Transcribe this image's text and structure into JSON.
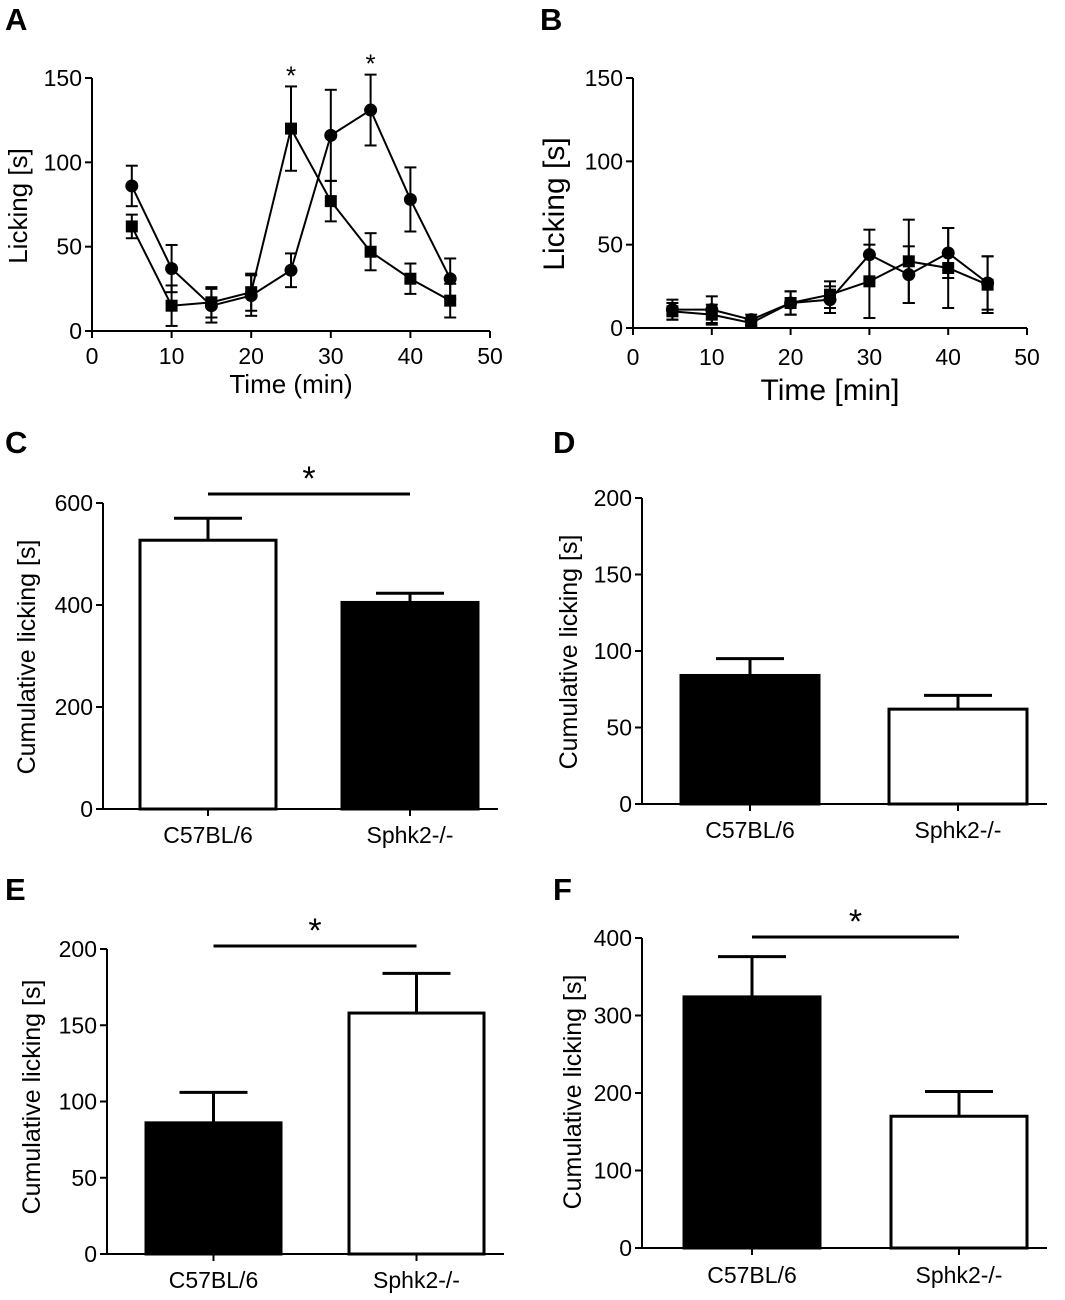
{
  "chart_data": [
    {
      "panel": "A",
      "type": "line",
      "xlabel": "Time (min)",
      "ylabel": "Licking [s]",
      "xlim": [
        0,
        50
      ],
      "ylim": [
        0,
        150
      ],
      "xticks": [
        "0",
        "10",
        "20",
        "30",
        "40",
        "50"
      ],
      "yticks": [
        "0",
        "50",
        "100",
        "150"
      ],
      "series": [
        {
          "name": "circles",
          "marker": "circle",
          "x": [
            5,
            10,
            15,
            20,
            25,
            30,
            35,
            40,
            45
          ],
          "values": [
            86,
            37,
            15,
            21,
            36,
            116,
            131,
            78,
            31
          ],
          "errors": [
            12,
            14,
            10,
            12,
            10,
            27,
            21,
            19,
            12
          ]
        },
        {
          "name": "squares",
          "marker": "square",
          "x": [
            5,
            10,
            15,
            20,
            25,
            30,
            35,
            40,
            45
          ],
          "values": [
            62,
            15,
            17,
            23,
            120,
            77,
            47,
            31,
            18
          ],
          "errors": [
            7,
            12,
            9,
            11,
            25,
            12,
            11,
            9,
            10
          ]
        }
      ],
      "annotations": [
        {
          "x": 25,
          "text": "*"
        },
        {
          "x": 35,
          "text": "*"
        }
      ]
    },
    {
      "panel": "B",
      "type": "line",
      "xlabel": "Time [min]",
      "ylabel": "Licking [s]",
      "xlim": [
        0,
        50
      ],
      "ylim": [
        0,
        150
      ],
      "xticks": [
        "0",
        "10",
        "20",
        "30",
        "40",
        "50"
      ],
      "yticks": [
        "0",
        "50",
        "100",
        "150"
      ],
      "series": [
        {
          "name": "circles",
          "marker": "circle",
          "x": [
            5,
            10,
            15,
            20,
            25,
            30,
            35,
            40,
            45
          ],
          "values": [
            11,
            11,
            5,
            15,
            17,
            44,
            32,
            45,
            27
          ],
          "errors": [
            6,
            8,
            3,
            7,
            8,
            15,
            17,
            15,
            16
          ]
        },
        {
          "name": "squares",
          "marker": "square",
          "x": [
            5,
            10,
            15,
            20,
            25,
            30,
            35,
            40,
            45
          ],
          "values": [
            10,
            8,
            3,
            15,
            20,
            28,
            40,
            36,
            26
          ],
          "errors": [
            5,
            6,
            2,
            7,
            8,
            22,
            25,
            24,
            17
          ]
        }
      ]
    },
    {
      "panel": "C",
      "type": "bar",
      "ylabel": "Cumulative licking [s]",
      "categories": [
        "C57BL/6",
        "Sphk2-/-"
      ],
      "values": [
        527,
        405
      ],
      "errors": [
        43,
        18
      ],
      "fills": [
        "#ffffff",
        "#000000"
      ],
      "ylim": [
        0,
        600
      ],
      "yticks": [
        "0",
        "200",
        "400",
        "600"
      ],
      "significance": "*"
    },
    {
      "panel": "D",
      "type": "bar",
      "ylabel": "Cumulative licking [s]",
      "categories": [
        "C57BL/6",
        "Sphk2-/-"
      ],
      "values": [
        84,
        62
      ],
      "errors": [
        11,
        9
      ],
      "fills": [
        "#000000",
        "#ffffff"
      ],
      "ylim": [
        0,
        200
      ],
      "yticks": [
        "0",
        "50",
        "100",
        "150",
        "200"
      ]
    },
    {
      "panel": "E",
      "type": "bar",
      "ylabel": "Cumulative licking [s]",
      "categories": [
        "C57BL/6",
        "Sphk2-/-"
      ],
      "values": [
        86,
        158
      ],
      "errors": [
        20,
        26
      ],
      "fills": [
        "#000000",
        "#ffffff"
      ],
      "ylim": [
        0,
        200
      ],
      "yticks": [
        "0",
        "50",
        "100",
        "150",
        "200"
      ],
      "significance": "*"
    },
    {
      "panel": "F",
      "type": "bar",
      "ylabel": "Cumulative licking [s]",
      "categories": [
        "C57BL/6",
        "Sphk2-/-"
      ],
      "values": [
        324,
        170
      ],
      "errors": [
        52,
        32
      ],
      "fills": [
        "#000000",
        "#ffffff"
      ],
      "ylim": [
        0,
        400
      ],
      "yticks": [
        "0",
        "100",
        "200",
        "300",
        "400"
      ],
      "significance": "*"
    }
  ]
}
